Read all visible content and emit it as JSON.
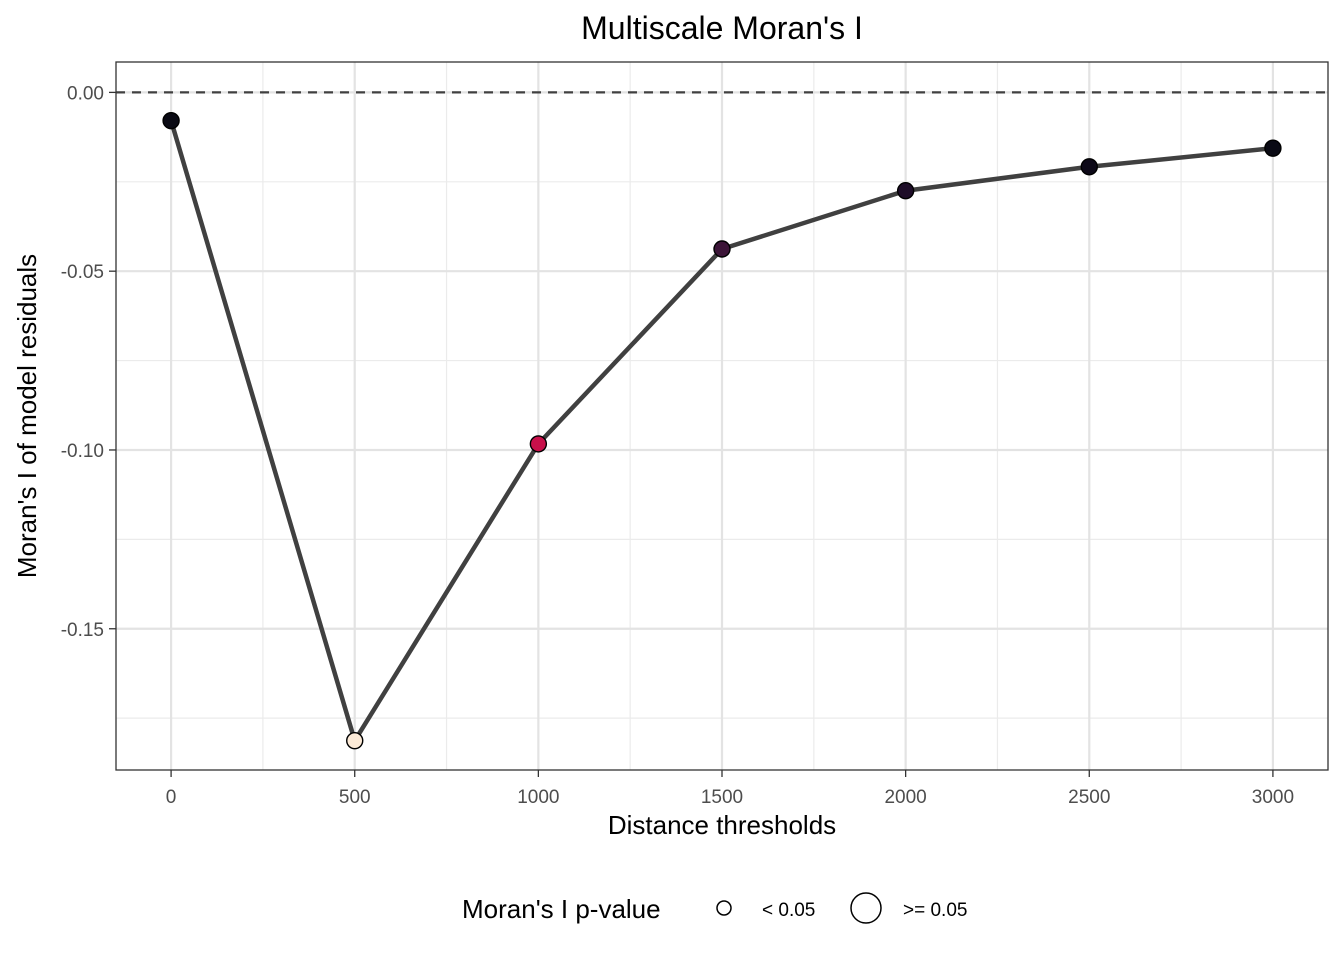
{
  "chart_data": {
    "type": "line",
    "title": "Multiscale Moran's I",
    "xlabel": "Distance thresholds",
    "ylabel": "Moran's I of model residuals",
    "xlim": [
      -150,
      3150
    ],
    "ylim": [
      -0.1895,
      0.0085
    ],
    "x_ticks": [
      0,
      500,
      1000,
      1500,
      2000,
      2500,
      3000
    ],
    "x_tick_labels": [
      "0",
      "500",
      "1000",
      "1500",
      "2000",
      "2500",
      "3000"
    ],
    "y_ticks": [
      0.0,
      -0.05,
      -0.1,
      -0.15
    ],
    "y_tick_labels": [
      "0.00",
      "-0.05",
      "-0.10",
      "-0.15"
    ],
    "reference_line": {
      "y": 0,
      "style": "dashed"
    },
    "grid": true,
    "line_color": "#404040",
    "points": [
      {
        "x": 0,
        "y": -0.0079,
        "fill": "#0a0a14"
      },
      {
        "x": 500,
        "y": -0.1813,
        "fill": "#fdebd8"
      },
      {
        "x": 1000,
        "y": -0.0983,
        "fill": "#c8104a"
      },
      {
        "x": 1500,
        "y": -0.0438,
        "fill": "#3c1538"
      },
      {
        "x": 2000,
        "y": -0.0275,
        "fill": "#1e0d28"
      },
      {
        "x": 2500,
        "y": -0.0208,
        "fill": "#0d0918"
      },
      {
        "x": 3000,
        "y": -0.0156,
        "fill": "#0a0a14"
      }
    ],
    "legend": {
      "position": "bottom",
      "title": "Moran's I p-value",
      "items": [
        {
          "label": "< 0.05",
          "size": "small"
        },
        {
          "label": ">= 0.05",
          "size": "large"
        }
      ]
    }
  }
}
